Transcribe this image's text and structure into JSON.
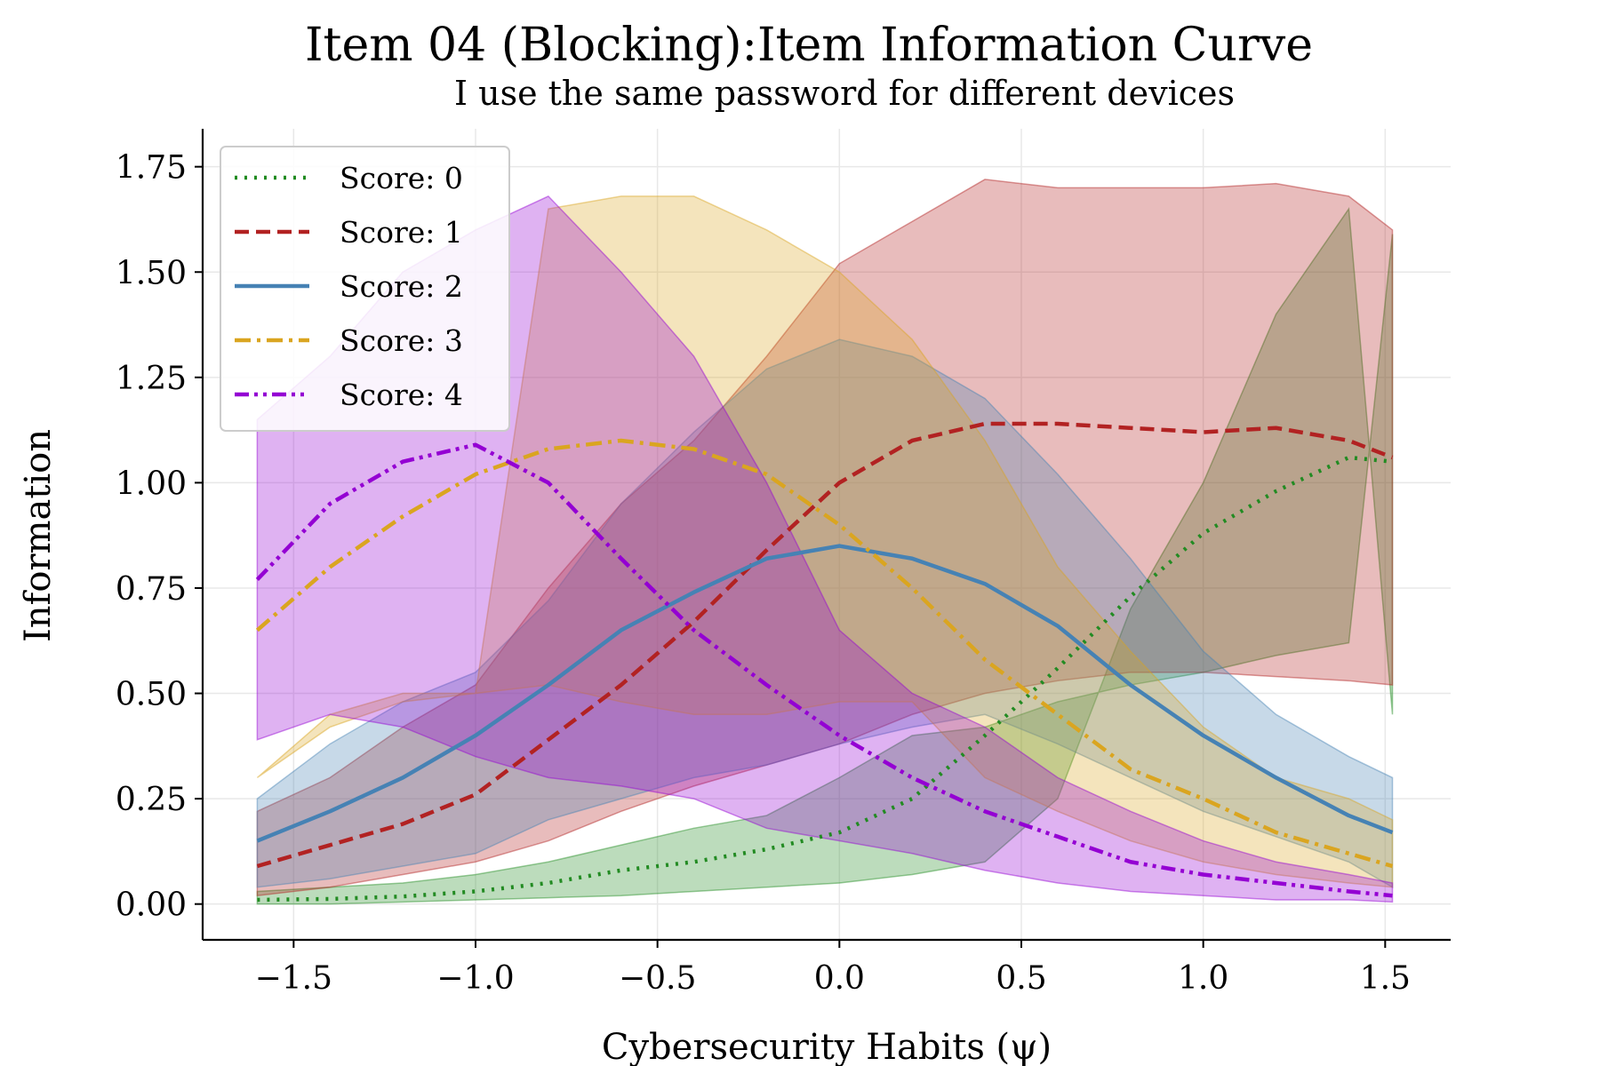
{
  "chart_data": {
    "type": "line",
    "title": "Item 04 (Blocking):Item Information Curve",
    "subtitle": "I use the same password for different devices",
    "xlabel": "Cybersecurity Habits (ψ)",
    "ylabel": "Information",
    "xlim": [
      -1.75,
      1.68
    ],
    "ylim": [
      -0.085,
      1.84
    ],
    "xticks": [
      -1.5,
      -1.0,
      -0.5,
      0.0,
      0.5,
      1.0,
      1.5
    ],
    "xtick_labels": [
      "−1.5",
      "−1.0",
      "−0.5",
      "0.0",
      "0.5",
      "1.0",
      "1.5"
    ],
    "yticks": [
      0.0,
      0.25,
      0.5,
      0.75,
      1.0,
      1.25,
      1.5,
      1.75
    ],
    "ytick_labels": [
      "0.00",
      "0.25",
      "0.50",
      "0.75",
      "1.00",
      "1.25",
      "1.50",
      "1.75"
    ],
    "grid": true,
    "legend_position": "top-left",
    "x": [
      -1.6,
      -1.4,
      -1.2,
      -1.0,
      -0.8,
      -0.6,
      -0.4,
      -0.2,
      0.0,
      0.2,
      0.4,
      0.6,
      0.8,
      1.0,
      1.2,
      1.4,
      1.52
    ],
    "series": [
      {
        "name": "Score: 0",
        "color": "#228B22",
        "dash": "dotted",
        "values": [
          0.01,
          0.012,
          0.018,
          0.03,
          0.05,
          0.08,
          0.1,
          0.13,
          0.17,
          0.25,
          0.4,
          0.56,
          0.73,
          0.88,
          0.98,
          1.06,
          1.05
        ],
        "band_upper": [
          0.03,
          0.04,
          0.05,
          0.07,
          0.1,
          0.14,
          0.18,
          0.21,
          0.3,
          0.4,
          0.42,
          0.48,
          0.52,
          0.55,
          0.59,
          0.62,
          1.59
        ],
        "band_lower": [
          0.0,
          0.0,
          0.005,
          0.01,
          0.015,
          0.02,
          0.03,
          0.04,
          0.05,
          0.07,
          0.1,
          0.25,
          0.7,
          1.0,
          1.4,
          1.65,
          0.45
        ]
      },
      {
        "name": "Score: 1",
        "color": "#B22222",
        "dash": "dashed",
        "values": [
          0.09,
          0.14,
          0.19,
          0.26,
          0.39,
          0.52,
          0.67,
          0.84,
          1.0,
          1.1,
          1.14,
          1.14,
          1.13,
          1.12,
          1.13,
          1.1,
          1.06
        ],
        "band_upper": [
          0.22,
          0.3,
          0.42,
          0.52,
          0.75,
          0.95,
          1.1,
          1.3,
          1.52,
          1.62,
          1.72,
          1.7,
          1.7,
          1.7,
          1.71,
          1.68,
          1.6
        ],
        "band_lower": [
          0.02,
          0.04,
          0.07,
          0.1,
          0.15,
          0.22,
          0.28,
          0.33,
          0.38,
          0.45,
          0.5,
          0.53,
          0.55,
          0.55,
          0.54,
          0.53,
          0.52
        ]
      },
      {
        "name": "Score: 2",
        "color": "#4682B4",
        "dash": "solid",
        "values": [
          0.15,
          0.22,
          0.3,
          0.4,
          0.52,
          0.65,
          0.74,
          0.82,
          0.85,
          0.82,
          0.76,
          0.66,
          0.52,
          0.4,
          0.3,
          0.21,
          0.17
        ],
        "band_upper": [
          0.25,
          0.38,
          0.48,
          0.55,
          0.72,
          0.95,
          1.12,
          1.27,
          1.34,
          1.3,
          1.2,
          1.02,
          0.82,
          0.6,
          0.45,
          0.35,
          0.3
        ],
        "band_lower": [
          0.04,
          0.06,
          0.09,
          0.12,
          0.2,
          0.25,
          0.3,
          0.33,
          0.38,
          0.42,
          0.45,
          0.38,
          0.3,
          0.22,
          0.16,
          0.1,
          0.04
        ]
      },
      {
        "name": "Score: 3",
        "color": "#DAA520",
        "dash": "dashdot",
        "values": [
          0.65,
          0.8,
          0.92,
          1.02,
          1.08,
          1.1,
          1.08,
          1.02,
          0.9,
          0.75,
          0.58,
          0.45,
          0.32,
          0.25,
          0.17,
          0.12,
          0.09
        ],
        "band_upper": [
          0.3,
          0.45,
          0.5,
          0.5,
          1.65,
          1.68,
          1.68,
          1.6,
          1.5,
          1.34,
          1.1,
          0.8,
          0.6,
          0.42,
          0.3,
          0.25,
          0.2
        ],
        "band_lower": [
          0.3,
          0.42,
          0.48,
          0.5,
          0.52,
          0.48,
          0.45,
          0.45,
          0.48,
          0.48,
          0.3,
          0.22,
          0.15,
          0.1,
          0.07,
          0.05,
          0.04
        ]
      },
      {
        "name": "Score: 4",
        "color": "#9400D3",
        "dash": "dashdotdot",
        "values": [
          0.77,
          0.95,
          1.05,
          1.09,
          1.0,
          0.82,
          0.65,
          0.52,
          0.4,
          0.3,
          0.22,
          0.16,
          0.1,
          0.07,
          0.05,
          0.03,
          0.02
        ],
        "band_upper": [
          1.15,
          1.3,
          1.5,
          1.6,
          1.68,
          1.5,
          1.3,
          1.0,
          0.65,
          0.5,
          0.42,
          0.3,
          0.22,
          0.15,
          0.1,
          0.07,
          0.05
        ],
        "band_lower": [
          0.39,
          0.45,
          0.42,
          0.35,
          0.3,
          0.28,
          0.25,
          0.18,
          0.15,
          0.12,
          0.08,
          0.05,
          0.03,
          0.02,
          0.01,
          0.01,
          0.005
        ]
      }
    ]
  }
}
